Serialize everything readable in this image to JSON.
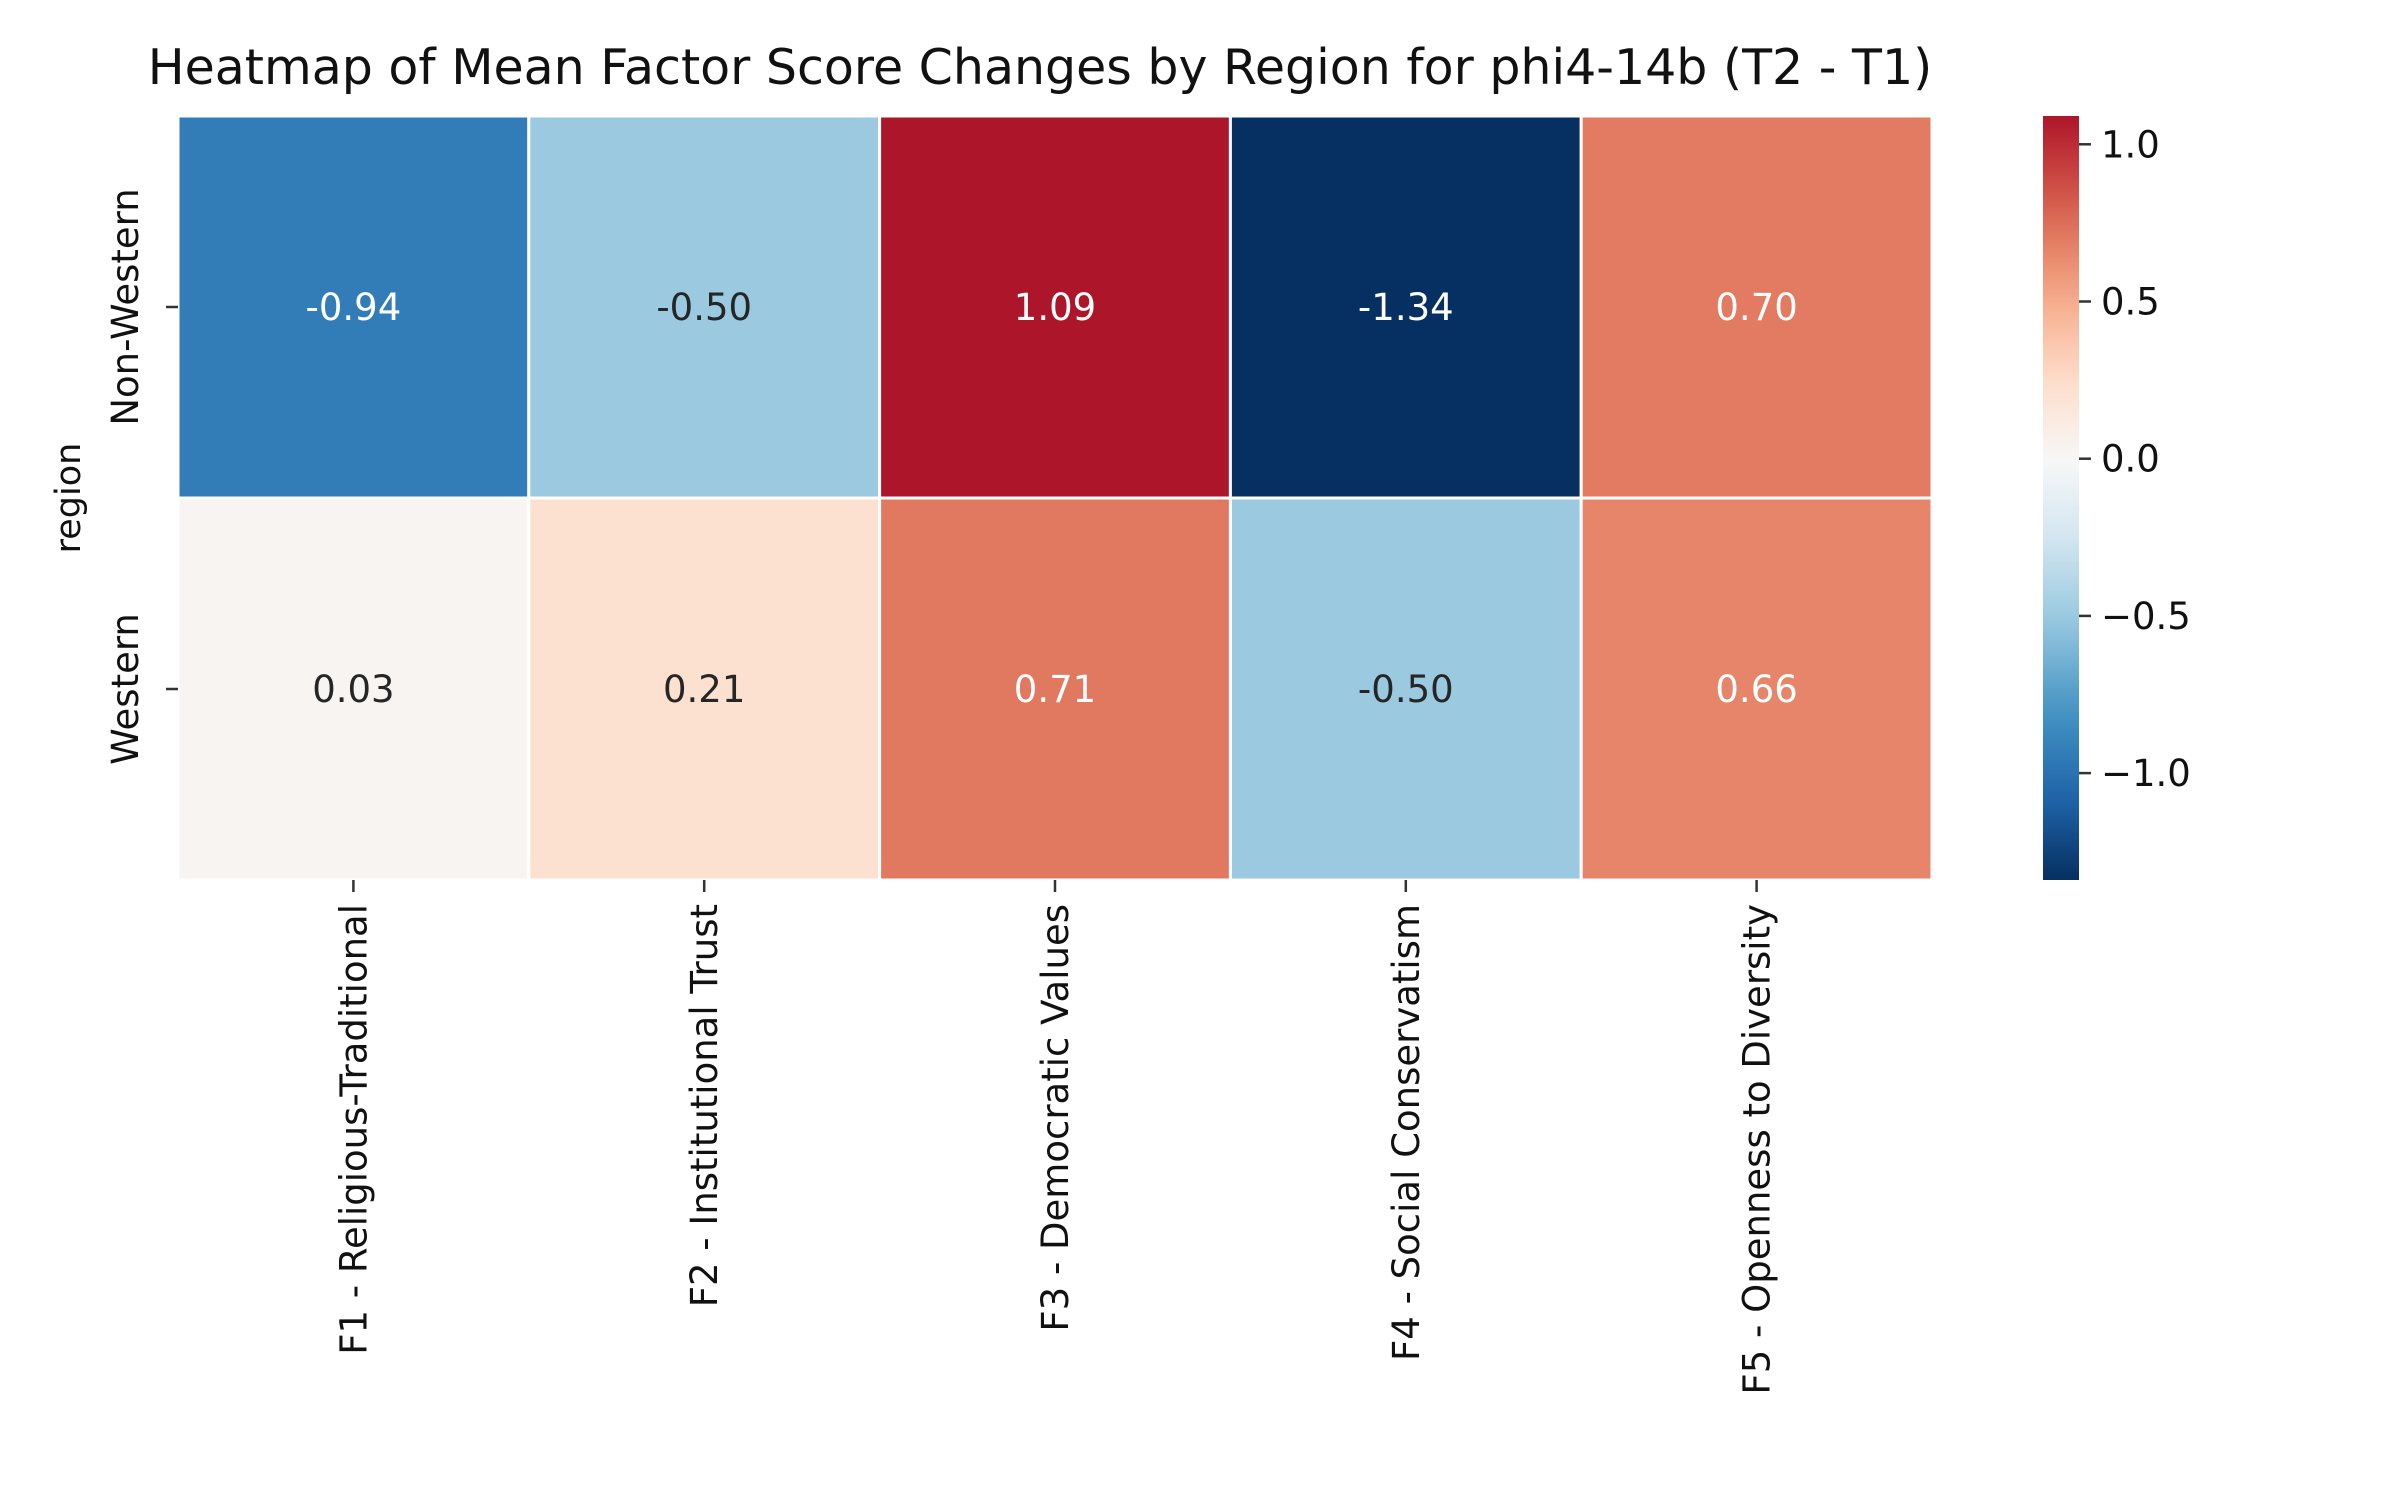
{
  "chart_data": {
    "type": "heatmap",
    "title": "Heatmap of Mean Factor Score Changes by Region for phi4-14b (T2 - T1)",
    "xlabel": "",
    "ylabel": "region",
    "rows": [
      "Non-Western",
      "Western"
    ],
    "columns": [
      "F1 - Religious-Traditional",
      "F2 - Institutional Trust",
      "F3 - Democratic Values",
      "F4 - Social Conservatism",
      "F5 - Openness to Diversity"
    ],
    "values": [
      [
        -0.94,
        -0.5,
        1.09,
        -1.34,
        0.7
      ],
      [
        0.03,
        0.21,
        0.71,
        -0.5,
        0.66
      ]
    ],
    "value_labels": [
      [
        "-0.94",
        "-0.50",
        "1.09",
        "-1.34",
        "0.70"
      ],
      [
        "0.03",
        "0.21",
        "0.71",
        "-0.50",
        "0.66"
      ]
    ],
    "colormap": "RdBu_r",
    "colorbar": {
      "range": [
        -1.34,
        1.09
      ],
      "center": 0,
      "ticks": [
        1.0,
        0.5,
        0.0,
        -0.5,
        -1.0
      ],
      "tick_labels": [
        "1.0",
        "0.5",
        "0.0",
        "−0.5",
        "−1.0"
      ]
    },
    "grid": false,
    "legend": "colorbar-right"
  }
}
